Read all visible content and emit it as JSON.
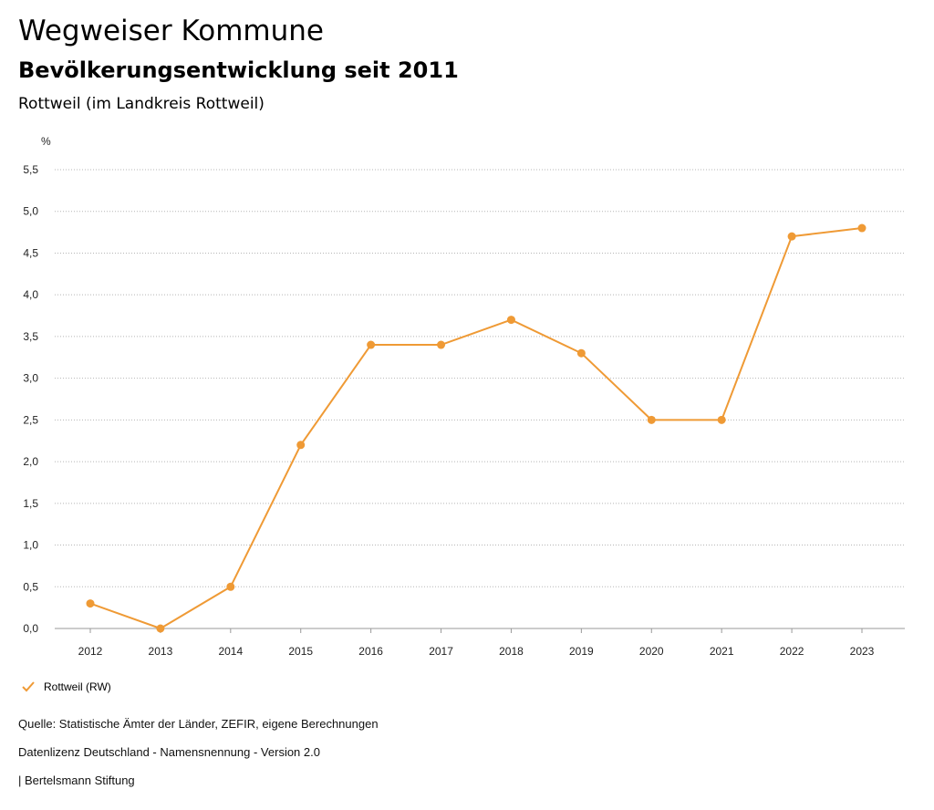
{
  "header": {
    "title": "Wegweiser Kommune",
    "subtitle": "Bevölkerungsentwicklung seit 2011",
    "region": "Rottweil (im Landkreis Rottweil)"
  },
  "chart_data": {
    "type": "line",
    "ylabel": "%",
    "x": [
      "2012",
      "2013",
      "2014",
      "2015",
      "2016",
      "2017",
      "2018",
      "2019",
      "2020",
      "2021",
      "2022",
      "2023"
    ],
    "series": [
      {
        "name": "Rottweil (RW)",
        "color": "#ef9a35",
        "values": [
          0.3,
          0.0,
          0.5,
          2.2,
          3.4,
          3.4,
          3.7,
          3.3,
          2.5,
          2.5,
          4.7,
          4.8
        ]
      }
    ],
    "ylim": [
      0,
      5.5
    ],
    "yticks": [
      "0,0",
      "0,5",
      "1,0",
      "1,5",
      "2,0",
      "2,5",
      "3,0",
      "3,5",
      "4,0",
      "4,5",
      "5,0",
      "5,5"
    ],
    "grid": true,
    "legend_position": "bottom-left"
  },
  "legend": {
    "label": "Rottweil (RW)",
    "icon": "checkmark-icon"
  },
  "footer": {
    "source": "Quelle: Statistische Ämter der Länder, ZEFIR, eigene Berechnungen",
    "license": "Datenlizenz Deutschland - Namensnennung - Version 2.0",
    "publisher": "| Bertelsmann Stiftung"
  }
}
